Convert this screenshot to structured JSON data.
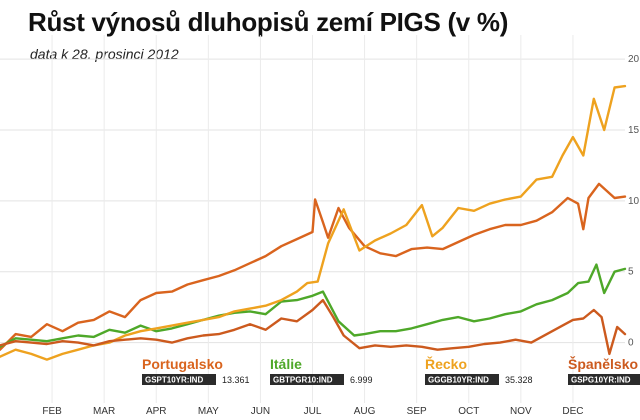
{
  "title": "Růst výnosů dluhopisů zemí PIGS (v %)",
  "subtitle": "data k 28. prosinci 2012",
  "chart_data": {
    "type": "line",
    "title": "Růst výnosů dluhopisů zemí PIGS (v %)",
    "subtitle": "data k 28. prosinci 2012",
    "xlabel": "",
    "ylabel": "",
    "x_ticks": [
      "FEB",
      "MAR",
      "APR",
      "MAY",
      "JUN",
      "JUL",
      "AUG",
      "SEP",
      "OCT",
      "NOV",
      "DEC"
    ],
    "y_ticks": [
      "0",
      "5",
      "10",
      "15",
      "20"
    ],
    "ylim": [
      -2.5,
      21
    ],
    "xlim": [
      0,
      12
    ],
    "grid": true,
    "legend_position": "bottom",
    "series": [
      {
        "name": "Portugalsko",
        "code": "GSPT10YR:IND",
        "value_label": "13.361",
        "color": "#d9641e",
        "x": [
          0,
          0.3,
          0.6,
          0.9,
          1.2,
          1.5,
          1.8,
          2.1,
          2.4,
          2.7,
          3.0,
          3.3,
          3.6,
          3.9,
          4.2,
          4.5,
          4.8,
          5.1,
          5.4,
          5.7,
          6.0,
          6.05,
          6.2,
          6.3,
          6.5,
          6.7,
          7.0,
          7.3,
          7.6,
          7.9,
          8.2,
          8.5,
          8.8,
          9.1,
          9.4,
          9.7,
          10.0,
          10.3,
          10.6,
          10.9,
          11.1,
          11.2,
          11.3,
          11.5,
          11.8,
          12.0
        ],
        "y": [
          -0.5,
          0.6,
          0.4,
          1.3,
          0.8,
          1.4,
          1.6,
          2.2,
          1.8,
          3.0,
          3.5,
          3.6,
          4.1,
          4.4,
          4.7,
          5.1,
          5.6,
          6.1,
          6.8,
          7.3,
          7.8,
          10.1,
          8.5,
          7.4,
          9.5,
          8.1,
          6.8,
          6.3,
          6.1,
          6.6,
          6.7,
          6.6,
          7.1,
          7.6,
          8.0,
          8.3,
          8.3,
          8.6,
          9.2,
          10.2,
          9.8,
          8.0,
          10.2,
          11.2,
          10.2,
          10.3
        ]
      },
      {
        "name": "Itálie",
        "code": "GBTPGR10:IND",
        "value_label": "6.999",
        "color": "#4ea829",
        "x": [
          0,
          0.3,
          0.6,
          0.9,
          1.2,
          1.5,
          1.8,
          2.1,
          2.4,
          2.7,
          3.0,
          3.3,
          3.6,
          3.9,
          4.2,
          4.5,
          4.8,
          5.1,
          5.4,
          5.7,
          6.0,
          6.2,
          6.5,
          6.8,
          7.0,
          7.3,
          7.6,
          7.9,
          8.2,
          8.5,
          8.8,
          9.1,
          9.4,
          9.7,
          10.0,
          10.3,
          10.6,
          10.9,
          11.1,
          11.3,
          11.45,
          11.6,
          11.8,
          12.0
        ],
        "y": [
          -0.3,
          0.3,
          0.2,
          0.1,
          0.3,
          0.5,
          0.4,
          0.9,
          0.7,
          1.2,
          0.8,
          1.0,
          1.3,
          1.6,
          1.9,
          2.1,
          2.2,
          2.0,
          2.9,
          3.0,
          3.3,
          3.6,
          1.5,
          0.5,
          0.6,
          0.8,
          0.8,
          1.0,
          1.3,
          1.6,
          1.8,
          1.5,
          1.7,
          2.0,
          2.2,
          2.7,
          3.0,
          3.5,
          4.2,
          4.3,
          5.5,
          3.5,
          5.0,
          5.2
        ]
      },
      {
        "name": "Řecko",
        "code": "GGGB10YR:IND",
        "value_label": "35.328",
        "color": "#eea21f",
        "x": [
          0,
          0.3,
          0.6,
          0.9,
          1.2,
          1.5,
          1.8,
          2.1,
          2.4,
          2.7,
          3.0,
          3.3,
          3.6,
          3.9,
          4.2,
          4.5,
          4.8,
          5.1,
          5.4,
          5.7,
          5.9,
          6.1,
          6.3,
          6.6,
          6.9,
          7.2,
          7.5,
          7.8,
          8.1,
          8.3,
          8.5,
          8.8,
          9.1,
          9.4,
          9.7,
          10.0,
          10.3,
          10.6,
          10.8,
          11.0,
          11.2,
          11.4,
          11.6,
          11.8,
          12.0
        ],
        "y": [
          -1.0,
          -0.5,
          -0.8,
          -1.2,
          -0.8,
          -0.5,
          -0.2,
          0.0,
          0.5,
          0.8,
          1.0,
          1.2,
          1.4,
          1.6,
          1.8,
          2.2,
          2.4,
          2.6,
          3.0,
          3.6,
          4.2,
          4.3,
          7.0,
          9.4,
          6.5,
          7.2,
          7.7,
          8.3,
          9.7,
          7.5,
          8.1,
          9.5,
          9.3,
          9.8,
          10.1,
          10.3,
          11.5,
          11.7,
          13.2,
          14.5,
          13.2,
          17.2,
          15.0,
          18.0,
          18.1
        ]
      },
      {
        "name": "Španělsko",
        "code": "GSPG10YR:IND",
        "value_label": "",
        "color": "#cc5a1e",
        "x": [
          0,
          0.3,
          0.6,
          0.9,
          1.2,
          1.5,
          1.8,
          2.1,
          2.4,
          2.7,
          3.0,
          3.3,
          3.6,
          3.9,
          4.2,
          4.5,
          4.8,
          5.1,
          5.4,
          5.7,
          6.0,
          6.2,
          6.4,
          6.6,
          6.9,
          7.2,
          7.5,
          7.8,
          8.1,
          8.4,
          8.7,
          9.0,
          9.3,
          9.6,
          9.9,
          10.2,
          10.5,
          10.8,
          11.0,
          11.2,
          11.4,
          11.55,
          11.7,
          11.85,
          12.0
        ],
        "y": [
          -0.2,
          0.1,
          0.0,
          -0.1,
          0.1,
          0.0,
          -0.2,
          0.1,
          0.2,
          0.3,
          0.2,
          0.0,
          0.3,
          0.5,
          0.6,
          0.9,
          1.3,
          0.9,
          1.7,
          1.5,
          2.3,
          3.0,
          1.8,
          0.5,
          -0.4,
          -0.2,
          -0.3,
          -0.2,
          -0.3,
          -0.5,
          -0.4,
          -0.3,
          -0.1,
          0.0,
          0.2,
          0.0,
          0.6,
          1.2,
          1.6,
          1.7,
          2.3,
          1.8,
          -0.8,
          1.1,
          0.6
        ]
      }
    ]
  }
}
